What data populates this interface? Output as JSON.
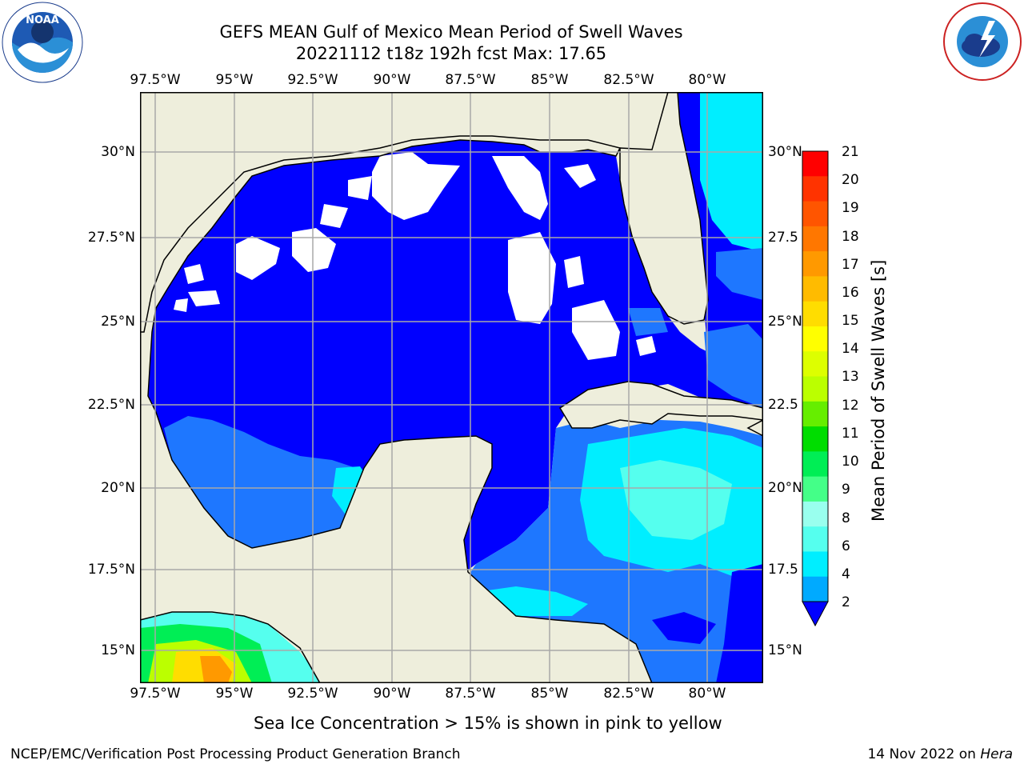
{
  "header": {
    "title_line1": "GEFS MEAN Gulf of Mexico Mean Period of Swell Waves",
    "title_line2": "20221112 t18z 192h fcst   Max: 17.65"
  },
  "logos": {
    "noaa": {
      "text": "NOAA",
      "ring_text": "NATIONAL OCEANIC AND ATMOSPHERIC ADMINISTRATION",
      "bottom_text": "U.S. DEPARTMENT OF COMMERCE"
    },
    "nws": {
      "ring_text": "NATIONAL WEATHER SERVICE"
    }
  },
  "axes": {
    "lon_labels": [
      "97.5°W",
      "95°W",
      "92.5°W",
      "90°W",
      "87.5°W",
      "85°W",
      "82.5°W",
      "80°W"
    ],
    "lat_labels_left": [
      "30°N",
      "27.5°N",
      "25°N",
      "22.5°N",
      "20°N",
      "17.5°N",
      "15°N"
    ],
    "lat_labels_right": [
      "30°N",
      "27.5",
      "25°N",
      "22.5",
      "20°N",
      "17.5",
      "15°N"
    ]
  },
  "colorbar": {
    "title": "Mean Period of Swell Waves [s]",
    "labels": [
      "21",
      "20",
      "19",
      "18",
      "17",
      "16",
      "15",
      "14",
      "13",
      "12",
      "11",
      "10",
      "9",
      "8",
      "6",
      "4",
      "2"
    ],
    "colors_top_to_bottom": [
      "#ff0000",
      "#ff3300",
      "#ff5500",
      "#ff7700",
      "#ff9900",
      "#ffbb00",
      "#ffdd00",
      "#ffff00",
      "#ddff00",
      "#bbff00",
      "#66ee00",
      "#00dd00",
      "#00ee55",
      "#44ff88",
      "#99ffee",
      "#55ffee",
      "#00eeff",
      "#00aaff"
    ],
    "extend_color": "#0000ff"
  },
  "map": {
    "colors": {
      "land": "#eeeedc",
      "blue": "#0000ff",
      "midblue": "#1e77ff",
      "cyan": "#00eeff",
      "lightcyan": "#55ffee"
    }
  },
  "footer": {
    "ice_note": "Sea Ice Concentration > 15% is shown in pink to yellow",
    "left": "NCEP/EMC/Verification Post Processing Product Generation Branch",
    "right_date": "14 Nov 2022 on ",
    "right_host": "Hera"
  }
}
